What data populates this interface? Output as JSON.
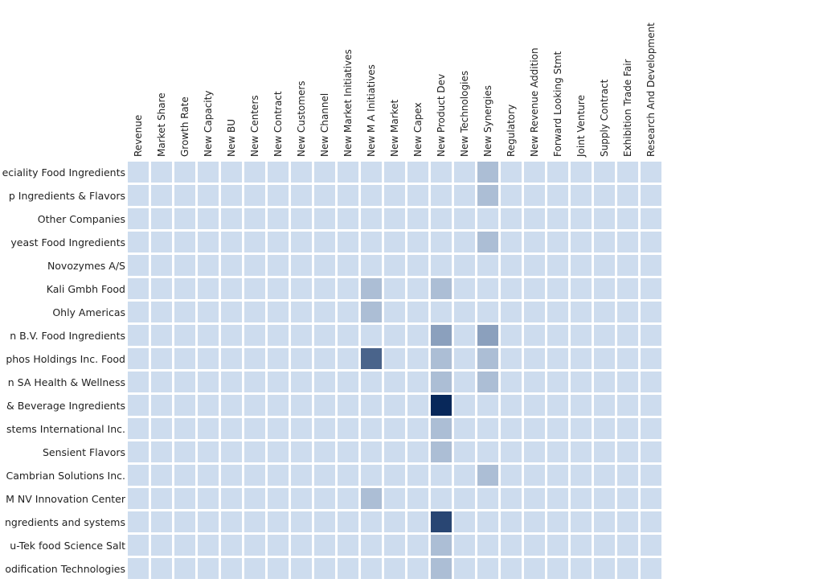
{
  "chart_data": {
    "type": "heatmap",
    "title": "",
    "xlabel": "",
    "ylabel": "",
    "grid": false,
    "legend": "none",
    "columns": [
      "Revenue",
      "Market Share",
      "Growth Rate",
      "New Capacity",
      "New BU",
      "New Centers",
      "New Contract",
      "New Customers",
      "New Channel",
      "New Market Initiatives",
      "New M A Initiatives",
      "New Market",
      "New Capex",
      "New Product Dev",
      "New Technologies",
      "New Synergies",
      "Regulatory",
      "New Revenue Addition",
      "Forward Looking Stmt",
      "Joint Venture",
      "Supply Contract",
      "Exhibition Trade Fair",
      "Research And Development"
    ],
    "rows": [
      "eciality Food Ingredients",
      "p Ingredients & Flavors",
      "Other Companies",
      "yeast Food Ingredients",
      "Novozymes A/S",
      "Kali Gmbh Food",
      "Ohly Americas",
      "n B.V. Food Ingredients",
      "phos Holdings Inc. Food",
      "n SA Health & Wellness",
      "& Beverage Ingredients",
      "stems International Inc.",
      "Sensient Flavors",
      "Cambrian Solutions Inc.",
      "M NV Innovation Center",
      "ngredients and systems",
      "u-Tek food Science Salt",
      "odification Technologies"
    ],
    "values": [
      [
        0,
        0,
        0,
        0,
        0,
        0,
        0,
        0,
        0,
        0,
        0,
        0,
        0,
        0,
        0,
        1,
        0,
        0,
        0,
        0,
        0,
        0,
        0
      ],
      [
        0,
        0,
        0,
        0,
        0,
        0,
        0,
        0,
        0,
        0,
        0,
        0,
        0,
        0,
        0,
        1,
        0,
        0,
        0,
        0,
        0,
        0,
        0
      ],
      [
        0,
        0,
        0,
        0,
        0,
        0,
        0,
        0,
        0,
        0,
        0,
        0,
        0,
        0,
        0,
        0,
        0,
        0,
        0,
        0,
        0,
        0,
        0
      ],
      [
        0,
        0,
        0,
        0,
        0,
        0,
        0,
        0,
        0,
        0,
        0,
        0,
        0,
        0,
        0,
        1,
        0,
        0,
        0,
        0,
        0,
        0,
        0
      ],
      [
        0,
        0,
        0,
        0,
        0,
        0,
        0,
        0,
        0,
        0,
        0,
        0,
        0,
        0,
        0,
        0,
        0,
        0,
        0,
        0,
        0,
        0,
        0
      ],
      [
        0,
        0,
        0,
        0,
        0,
        0,
        0,
        0,
        0,
        0,
        1,
        0,
        0,
        1,
        0,
        0,
        0,
        0,
        0,
        0,
        0,
        0,
        0
      ],
      [
        0,
        0,
        0,
        0,
        0,
        0,
        0,
        0,
        0,
        0,
        1,
        0,
        0,
        0,
        0,
        0,
        0,
        0,
        0,
        0,
        0,
        0,
        0
      ],
      [
        0,
        0,
        0,
        0,
        0,
        0,
        0,
        0,
        0,
        0,
        0,
        0,
        0,
        2,
        0,
        2,
        0,
        0,
        0,
        0,
        0,
        0,
        0
      ],
      [
        0,
        0,
        0,
        0,
        0,
        0,
        0,
        0,
        0,
        0,
        4,
        0,
        0,
        1,
        0,
        1,
        0,
        0,
        0,
        0,
        0,
        0,
        0
      ],
      [
        0,
        0,
        0,
        0,
        0,
        0,
        0,
        0,
        0,
        0,
        0,
        0,
        0,
        1,
        0,
        1,
        0,
        0,
        0,
        0,
        0,
        0,
        0
      ],
      [
        0,
        0,
        0,
        0,
        0,
        0,
        0,
        0,
        0,
        0,
        0,
        0,
        0,
        6,
        0,
        0,
        0,
        0,
        0,
        0,
        0,
        0,
        0
      ],
      [
        0,
        0,
        0,
        0,
        0,
        0,
        0,
        0,
        0,
        0,
        0,
        0,
        0,
        1,
        0,
        0,
        0,
        0,
        0,
        0,
        0,
        0,
        0
      ],
      [
        0,
        0,
        0,
        0,
        0,
        0,
        0,
        0,
        0,
        0,
        0,
        0,
        0,
        1,
        0,
        0,
        0,
        0,
        0,
        0,
        0,
        0,
        0
      ],
      [
        0,
        0,
        0,
        0,
        0,
        0,
        0,
        0,
        0,
        0,
        0,
        0,
        0,
        0,
        0,
        1,
        0,
        0,
        0,
        0,
        0,
        0,
        0
      ],
      [
        0,
        0,
        0,
        0,
        0,
        0,
        0,
        0,
        0,
        0,
        1,
        0,
        0,
        0,
        0,
        0,
        0,
        0,
        0,
        0,
        0,
        0,
        0
      ],
      [
        0,
        0,
        0,
        0,
        0,
        0,
        0,
        0,
        0,
        0,
        0,
        0,
        0,
        5,
        0,
        0,
        0,
        0,
        0,
        0,
        0,
        0,
        0
      ],
      [
        0,
        0,
        0,
        0,
        0,
        0,
        0,
        0,
        0,
        0,
        0,
        0,
        0,
        1,
        0,
        0,
        0,
        0,
        0,
        0,
        0,
        0,
        0
      ],
      [
        0,
        0,
        0,
        0,
        0,
        0,
        0,
        0,
        0,
        0,
        0,
        0,
        0,
        1,
        0,
        0,
        0,
        0,
        0,
        0,
        0,
        0,
        0
      ]
    ],
    "color_scale": {
      "low": "#cddcee",
      "high": "#08285a"
    },
    "value_range": [
      0,
      6
    ]
  }
}
